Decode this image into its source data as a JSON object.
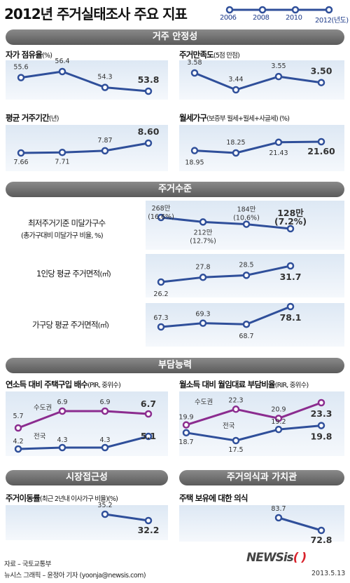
{
  "title": "2012년 주거실태조사 주요 지표",
  "legend_years": [
    "2006",
    "2008",
    "2010",
    "2012(년도)"
  ],
  "series_color": "#2f4f9a",
  "highlight_color": "#8b2c8f",
  "sections": {
    "residential_stability": "거주 안정성",
    "housing_level": "주거수준",
    "affordability": "부담능력",
    "market_access": "시장접근성",
    "housing_values": "주거의식과 가치관"
  },
  "panels": {
    "ownership": {
      "title_main": "자가 점유율",
      "title_sub": "(%)"
    },
    "satisfaction": {
      "title_main": "주거만족도",
      "title_sub": "(5점 만점)"
    },
    "tenure": {
      "title_main": "평균 거주기간",
      "title_sub": "(년)"
    },
    "monthly_rent": {
      "title_main": "월세가구",
      "title_sub": "(보증부 월세+월세+사글세) (%)"
    },
    "min_standard": {
      "title_line1": "최저주거기준 미달가구수",
      "title_line2": "(총가구대비 미달가구 비율, %)"
    },
    "area_person": {
      "title_main": "1인당 평균 주거면적",
      "title_sub": "(㎡)"
    },
    "area_household": {
      "title_main": "가구당 평균 주거면적",
      "title_sub": "(㎡)"
    },
    "pir": {
      "title_main": "연소득 대비 주택구입 배수",
      "title_sub": "(PIR, 중위수)"
    },
    "rir": {
      "title_main": "월소득 대비 월임대료 부담비율",
      "title_sub": "(RIR, 중위수)"
    },
    "mobility": {
      "title_main": "주거이동률",
      "title_sub": "(최근 2년내 이사가구 비율)(%)"
    },
    "ownership_awareness": {
      "title_main": "주택 보유에 대한 의식"
    }
  },
  "chart_data": [
    {
      "id": "ownership",
      "type": "line",
      "title": "자가 점유율(%)",
      "x": [
        "2006",
        "2008",
        "2010",
        "2012"
      ],
      "values": [
        55.6,
        56.4,
        54.3,
        53.8
      ],
      "labels": [
        "55.6",
        "56.4",
        "54.3",
        "53.8"
      ]
    },
    {
      "id": "satisfaction",
      "type": "line",
      "title": "주거만족도(5점 만점)",
      "x": [
        "2006",
        "2008",
        "2010",
        "2012"
      ],
      "values": [
        3.58,
        3.44,
        3.55,
        3.5
      ],
      "labels": [
        "3.58",
        "3.44",
        "3.55",
        "3.50"
      ]
    },
    {
      "id": "tenure",
      "type": "line",
      "title": "평균 거주기간(년)",
      "x": [
        "2006",
        "2008",
        "2010",
        "2012"
      ],
      "values": [
        7.66,
        7.71,
        7.87,
        8.6
      ],
      "labels": [
        "7.66",
        "7.71",
        "7.87",
        "8.60"
      ]
    },
    {
      "id": "monthly_rent",
      "type": "line",
      "title": "월세가구(보증부 월세+월세+사글세) (%)",
      "x": [
        "2006",
        "2008",
        "2010",
        "2012"
      ],
      "values": [
        18.95,
        18.25,
        21.43,
        21.6
      ],
      "labels": [
        "18.95",
        "18.25",
        "21.43",
        "21.60"
      ]
    },
    {
      "id": "min_standard",
      "type": "line",
      "title": "최저주거기준 미달가구수",
      "x": [
        "2006",
        "2008",
        "2010",
        "2012"
      ],
      "values": [
        268,
        212,
        184,
        128
      ],
      "unit": "만",
      "pct": [
        16.6,
        12.7,
        10.6,
        7.2
      ],
      "labels": [
        "268만",
        "212만",
        "184만",
        "128만"
      ],
      "sublabels": [
        "(16.6%)",
        "(12.7%)",
        "(10.6%)",
        "(7.2%)"
      ]
    },
    {
      "id": "area_person",
      "type": "line",
      "title": "1인당 평균 주거면적(㎡)",
      "x": [
        "2006",
        "2008",
        "2010",
        "2012"
      ],
      "values": [
        26.2,
        27.8,
        28.5,
        31.7
      ],
      "labels": [
        "26.2",
        "27.8",
        "28.5",
        "31.7"
      ]
    },
    {
      "id": "area_household",
      "type": "line",
      "title": "가구당 평균 주거면적(㎡)",
      "x": [
        "2006",
        "2008",
        "2010",
        "2012"
      ],
      "values": [
        67.3,
        69.3,
        68.7,
        78.1
      ],
      "labels": [
        "67.3",
        "69.3",
        "68.7",
        "78.1"
      ]
    },
    {
      "id": "pir",
      "type": "line",
      "title": "연소득 대비 주택구입 배수(PIR, 중위수)",
      "x": [
        "2006",
        "2008",
        "2010",
        "2012"
      ],
      "series": [
        {
          "name": "수도권",
          "values": [
            5.7,
            6.9,
            6.9,
            6.7
          ],
          "labels": [
            "5.7",
            "6.9",
            "6.9",
            "6.7"
          ]
        },
        {
          "name": "전국",
          "values": [
            4.2,
            4.3,
            4.3,
            5.1
          ],
          "labels": [
            "4.2",
            "4.3",
            "4.3",
            "5.1"
          ]
        }
      ]
    },
    {
      "id": "rir",
      "type": "line",
      "title": "월소득 대비 월임대료 부담비율(RIR, 중위수)",
      "x": [
        "2006",
        "2008",
        "2010",
        "2012"
      ],
      "series": [
        {
          "name": "수도권",
          "values": [
            19.9,
            22.3,
            20.9,
            23.3
          ],
          "labels": [
            "19.9",
            "22.3",
            "20.9",
            "23.3"
          ]
        },
        {
          "name": "전국",
          "values": [
            18.7,
            17.5,
            19.2,
            19.8
          ],
          "labels": [
            "18.7",
            "17.5",
            "19.2",
            "19.8"
          ]
        }
      ]
    },
    {
      "id": "mobility",
      "type": "line",
      "title": "주거이동률(최근 2년내 이사가구 비율)(%)",
      "x": [
        "2010",
        "2012"
      ],
      "values": [
        35.2,
        32.2
      ],
      "labels": [
        "35.2",
        "32.2"
      ]
    },
    {
      "id": "ownership_awareness",
      "type": "line",
      "title": "주택 보유에 대한 의식",
      "x": [
        "2010",
        "2012"
      ],
      "values": [
        83.7,
        72.8
      ],
      "labels": [
        "83.7",
        "72.8"
      ]
    }
  ],
  "footer": {
    "source": "자료 – 국토교통부",
    "credit": "뉴시스 그래픽 – 윤정아 기자 (yoonja@newsis.com)",
    "logo_text": "NEWSis",
    "logo_paren": "( )",
    "date": "2013.5.13"
  }
}
